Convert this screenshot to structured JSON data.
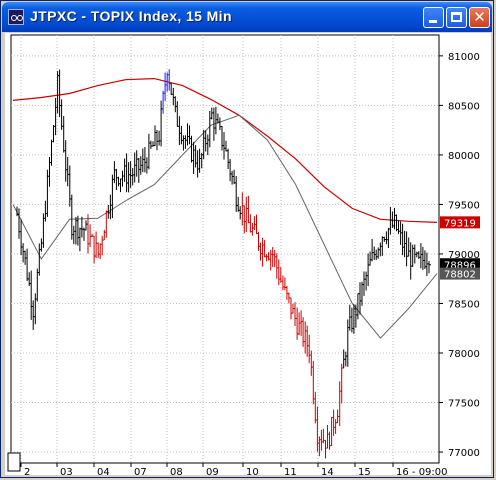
{
  "window": {
    "title": "JTPXC - TOPIX Index, 15 Min",
    "icon": "chart-app-icon",
    "controls": {
      "minimize": "minimize-icon",
      "maximize": "maximize-icon",
      "close": "close-icon",
      "close_glyph": "✕"
    }
  },
  "colors": {
    "up_bar": "#000000",
    "down_bar": "#cc0000",
    "highlight_bar": "#1a1aff",
    "ma_long": "#cc0000",
    "ma_short": "#666666",
    "grid": "#c0c0c0",
    "label_ma_long_bg": "#cc0000",
    "label_price_bg": "#000000",
    "label_ma_short_bg": "#555555"
  },
  "chart_data": {
    "type": "ohlc-bar",
    "title": "",
    "xlabel": "",
    "ylabel": "",
    "ylim": [
      76950,
      81150
    ],
    "y_ticks": [
      77000,
      77500,
      78000,
      78500,
      79000,
      79500,
      80000,
      80500,
      81000
    ],
    "x_ticks": [
      "2",
      "03",
      "04",
      "07",
      "08",
      "09",
      "10",
      "11",
      "14",
      "15",
      "16 - 09:00"
    ],
    "grid": true,
    "legend": "none",
    "price_labels": [
      {
        "text": "79319",
        "value": 79319,
        "kind": "ma_long"
      },
      {
        "text": "78896",
        "value": 78896,
        "kind": "price"
      },
      {
        "text": "78802",
        "value": 78802,
        "kind": "ma_short"
      }
    ],
    "ma_long": [
      [
        0,
        80550
      ],
      [
        1,
        80580
      ],
      [
        2,
        80620
      ],
      [
        3,
        80700
      ],
      [
        4,
        80760
      ],
      [
        5,
        80770
      ],
      [
        6,
        80700
      ],
      [
        7,
        80560
      ],
      [
        8,
        80400
      ],
      [
        9,
        80190
      ],
      [
        10,
        79960
      ],
      [
        11,
        79680
      ],
      [
        12,
        79460
      ],
      [
        13,
        79350
      ],
      [
        14,
        79330
      ],
      [
        15,
        79319
      ]
    ],
    "ma_short": [
      [
        0,
        79500
      ],
      [
        1,
        78950
      ],
      [
        2,
        79350
      ],
      [
        3,
        79360
      ],
      [
        4,
        79540
      ],
      [
        5,
        79700
      ],
      [
        6,
        80000
      ],
      [
        7,
        80300
      ],
      [
        8,
        80400
      ],
      [
        9,
        80150
      ],
      [
        10,
        79700
      ],
      [
        11,
        79100
      ],
      [
        12,
        78500
      ],
      [
        13,
        78150
      ],
      [
        14,
        78450
      ],
      [
        15,
        78802
      ]
    ]
  }
}
